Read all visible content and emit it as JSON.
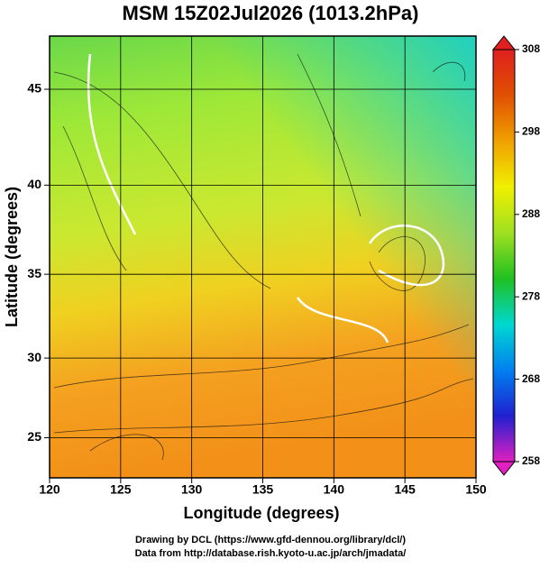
{
  "chart_data": {
    "type": "map",
    "title": "MSM 15Z02Jul2026 (1013.2hPa)",
    "xlabel": "Longitude (degrees)",
    "ylabel": "Latitude  (degrees)",
    "projection": "mercator",
    "xlim": [
      120,
      150
    ],
    "xticks": [
      120,
      125,
      130,
      135,
      140,
      145,
      150
    ],
    "ylim": [
      22.4,
      47.6
    ],
    "yticks": [
      25,
      30,
      35,
      40,
      45
    ],
    "grid": true,
    "colorbar": {
      "lim": [
        258,
        308
      ],
      "ticks": [
        258,
        268,
        278,
        288,
        298,
        308
      ],
      "colors": [
        "#e020c0",
        "#2020d0",
        "#0080f0",
        "#00d8d0",
        "#20c020",
        "#a0e020",
        "#f0f000",
        "#f0a000",
        "#e05000",
        "#e02020"
      ]
    },
    "credits": [
      "Drawing by DCL (https://www.gfd-dennou.org/library/dcl/)",
      "Data from http://database.rish.kyoto-u.ac.jp/arch/jmadata/"
    ]
  }
}
